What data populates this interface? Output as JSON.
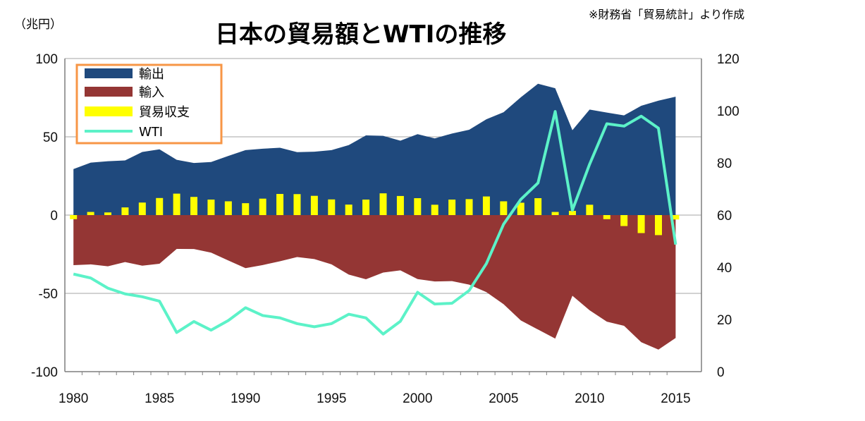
{
  "chart_data": {
    "type": "area",
    "title": "日本の貿易額とWTIの推移",
    "unit_left": "（兆円）",
    "source_note": "※財務省「貿易統計」より作成",
    "x": [
      1980,
      1981,
      1982,
      1983,
      1984,
      1985,
      1986,
      1987,
      1988,
      1989,
      1990,
      1991,
      1992,
      1993,
      1994,
      1995,
      1996,
      1997,
      1998,
      1999,
      2000,
      2001,
      2002,
      2003,
      2004,
      2005,
      2006,
      2007,
      2008,
      2009,
      2010,
      2011,
      2012,
      2013,
      2014,
      2015
    ],
    "x_ticks": [
      "1980",
      "1985",
      "1990",
      "1995",
      "2000",
      "2005",
      "2010",
      "2015"
    ],
    "x_tick_values": [
      1980,
      1985,
      1990,
      1995,
      2000,
      2005,
      2010,
      2015
    ],
    "ylim_left": [
      -100,
      100
    ],
    "y_ticks_left": [
      "100",
      "50",
      "0",
      "-50",
      "-100"
    ],
    "y_tick_values_left": [
      100,
      50,
      0,
      -50,
      -100
    ],
    "ylim_right": [
      0,
      120
    ],
    "y_ticks_right": [
      "120",
      "100",
      "80",
      "60",
      "40",
      "20",
      "0"
    ],
    "y_tick_values_right": [
      120,
      100,
      80,
      60,
      40,
      20,
      0
    ],
    "grid": true,
    "legend_position": "top-left",
    "series": [
      {
        "name": "輸出",
        "type": "area",
        "axis": "left",
        "color": "#1f497d",
        "values": [
          29.4,
          33.5,
          34.4,
          34.9,
          40.3,
          42.0,
          35.3,
          33.3,
          33.9,
          37.8,
          41.5,
          42.4,
          43.0,
          40.2,
          40.5,
          41.5,
          44.7,
          50.9,
          50.6,
          47.5,
          51.7,
          49.0,
          52.1,
          54.5,
          61.2,
          65.7,
          75.2,
          83.9,
          81.0,
          54.2,
          67.4,
          65.5,
          63.7,
          69.8,
          73.1,
          75.6
        ]
      },
      {
        "name": "輸入",
        "type": "area",
        "axis": "left",
        "color": "#943634",
        "values": [
          -32.0,
          -31.5,
          -32.7,
          -30.0,
          -32.3,
          -31.1,
          -21.6,
          -21.7,
          -24.0,
          -29.0,
          -33.9,
          -31.9,
          -29.5,
          -26.8,
          -28.1,
          -31.5,
          -38.0,
          -41.0,
          -36.7,
          -35.3,
          -40.9,
          -42.4,
          -42.2,
          -44.4,
          -49.2,
          -56.9,
          -67.3,
          -73.1,
          -78.9,
          -51.5,
          -60.8,
          -68.1,
          -70.7,
          -81.2,
          -85.9,
          -78.5
        ]
      },
      {
        "name": "貿易収支",
        "type": "bar",
        "axis": "left",
        "color": "#ffff00",
        "values": [
          -2.6,
          2.0,
          1.7,
          4.9,
          8.0,
          10.9,
          13.7,
          11.6,
          9.9,
          8.8,
          7.6,
          10.5,
          13.5,
          13.4,
          12.3,
          10.0,
          6.7,
          9.9,
          13.9,
          12.2,
          10.8,
          6.6,
          9.9,
          10.2,
          11.9,
          8.8,
          7.9,
          10.8,
          2.0,
          2.7,
          6.6,
          -2.6,
          -7.0,
          -11.5,
          -12.8,
          -2.8
        ]
      },
      {
        "name": "WTI",
        "type": "line",
        "axis": "right",
        "color": "#5cf2c8",
        "values": [
          37.4,
          35.9,
          32.0,
          29.8,
          28.7,
          27.0,
          15.0,
          19.2,
          15.9,
          19.6,
          24.5,
          21.5,
          20.6,
          18.4,
          17.2,
          18.4,
          22.0,
          20.6,
          14.4,
          19.3,
          30.4,
          25.9,
          26.2,
          31.1,
          41.4,
          56.5,
          66.0,
          72.3,
          99.7,
          61.9,
          79.5,
          95.0,
          94.1,
          97.9,
          93.3,
          48.7
        ]
      }
    ]
  }
}
